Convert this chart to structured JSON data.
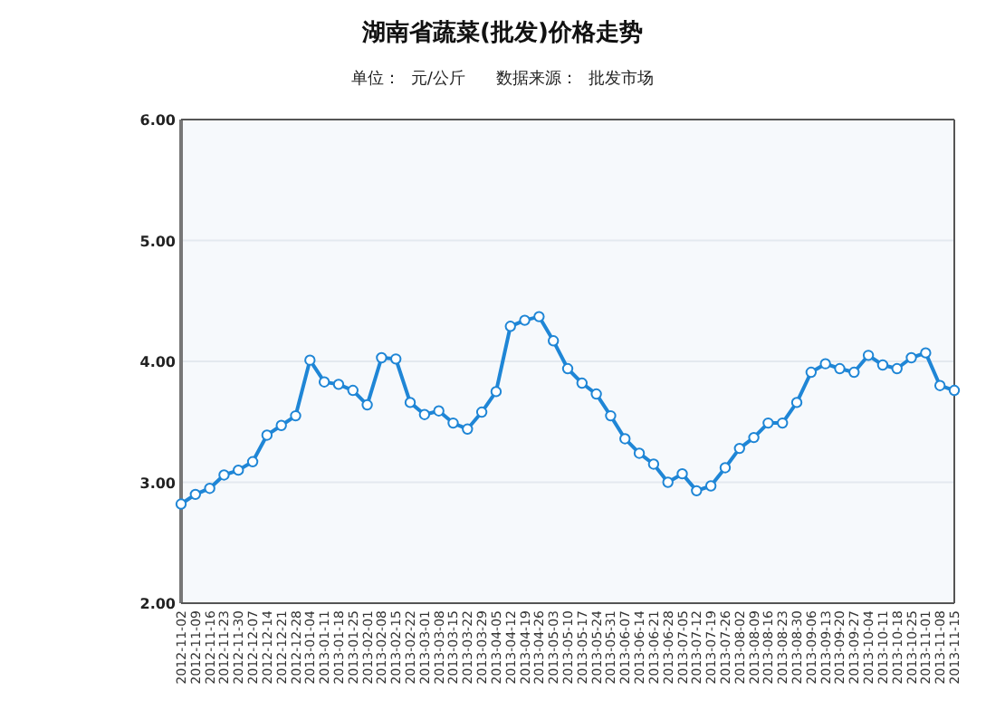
{
  "chart_data": {
    "type": "line",
    "title": "湖南省蔬菜(批发)价格走势",
    "subtitle": "单位：  元/公斤      数据来源：  批发市场",
    "categories": [
      "2012-11-02",
      "2012-11-09",
      "2012-11-16",
      "2012-11-23",
      "2012-11-30",
      "2012-12-07",
      "2012-12-14",
      "2012-12-21",
      "2012-12-28",
      "2013-01-04",
      "2013-01-11",
      "2013-01-18",
      "2013-01-25",
      "2013-02-01",
      "2013-02-08",
      "2013-02-15",
      "2013-02-22",
      "2013-03-01",
      "2013-03-08",
      "2013-03-15",
      "2013-03-22",
      "2013-03-29",
      "2013-04-05",
      "2013-04-12",
      "2013-04-19",
      "2013-04-26",
      "2013-05-03",
      "2013-05-10",
      "2013-05-17",
      "2013-05-24",
      "2013-05-31",
      "2013-06-07",
      "2013-06-14",
      "2013-06-21",
      "2013-06-28",
      "2013-07-05",
      "2013-07-12",
      "2013-07-19",
      "2013-07-26",
      "2013-08-02",
      "2013-08-09",
      "2013-08-16",
      "2013-08-23",
      "2013-08-30",
      "2013-09-06",
      "2013-09-13",
      "2013-09-20",
      "2013-09-27",
      "2013-10-04",
      "2013-10-11",
      "2013-10-18",
      "2013-10-25",
      "2013-11-01",
      "2013-11-08",
      "2013-11-15"
    ],
    "series": [
      {
        "color": "#1f86d6",
        "values": [
          2.82,
          2.9,
          2.95,
          3.06,
          3.1,
          3.17,
          3.39,
          3.47,
          3.55,
          4.01,
          3.83,
          3.81,
          3.76,
          3.64,
          4.03,
          4.02,
          3.66,
          3.56,
          3.59,
          3.49,
          3.44,
          3.58,
          3.75,
          4.29,
          4.34,
          4.37,
          4.17,
          3.94,
          3.82,
          3.73,
          3.55,
          3.36,
          3.24,
          3.15,
          3.0,
          3.07,
          2.93,
          2.97,
          3.12,
          3.28,
          3.37,
          3.49,
          3.49,
          3.66,
          3.91,
          3.98,
          3.94,
          3.91,
          4.05,
          3.97,
          3.94,
          4.03,
          4.07,
          3.8,
          3.76
        ]
      }
    ],
    "ylim": [
      2,
      6
    ],
    "yticks": [
      {
        "value": 2,
        "label": "2.00"
      },
      {
        "value": 3,
        "label": "3.00"
      },
      {
        "value": 4,
        "label": "4.00"
      },
      {
        "value": 5,
        "label": "5.00"
      },
      {
        "value": 6,
        "label": "6.00"
      }
    ],
    "grid": "y",
    "marker": "circle",
    "line_style": "solid"
  }
}
